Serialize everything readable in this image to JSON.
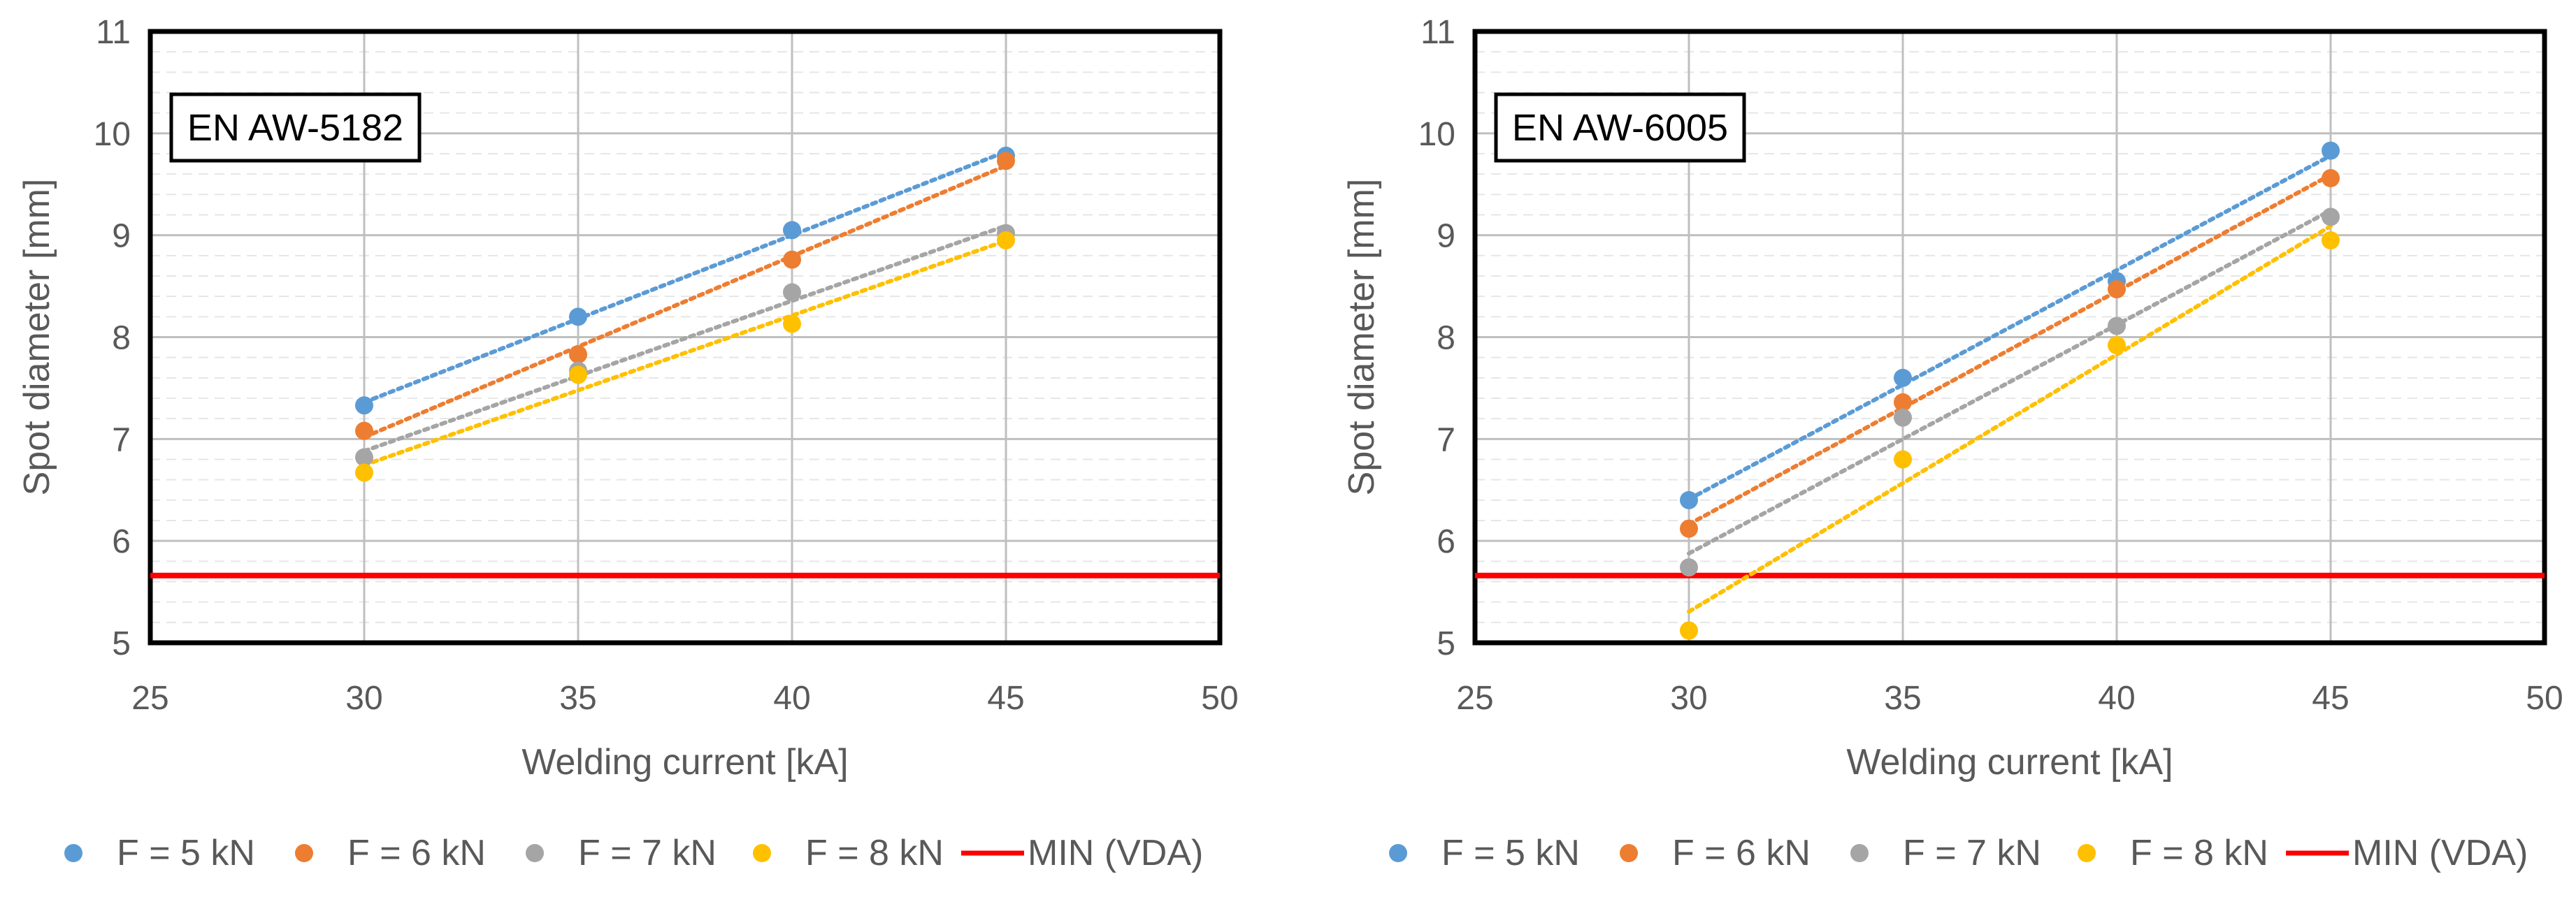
{
  "colors": {
    "f5": "#5B9BD5",
    "f6": "#ED7D31",
    "f7": "#A5A5A5",
    "f8": "#FFC000",
    "min": "#FF0000"
  },
  "chart_data": [
    {
      "type": "scatter",
      "label": "EN AW-5182",
      "xlabel": "Welding current [kA]",
      "ylabel": "Spot diameter [mm]",
      "xlim": [
        25,
        50
      ],
      "ylim": [
        5,
        11
      ],
      "xticks": [
        "25",
        "30",
        "35",
        "40",
        "45",
        "50"
      ],
      "yticks": [
        "5",
        "6",
        "7",
        "8",
        "9",
        "10",
        "11"
      ],
      "grid": true,
      "trendlines": "linear, dotted",
      "legend_position": "bottom",
      "series": [
        {
          "name": "F = 5 kN",
          "color_key": "f5",
          "x": [
            30,
            35,
            40,
            45
          ],
          "y": [
            7.33,
            8.2,
            9.05,
            9.78
          ]
        },
        {
          "name": "F = 6 kN",
          "color_key": "f6",
          "x": [
            30,
            35,
            40,
            45
          ],
          "y": [
            7.08,
            7.83,
            8.76,
            9.73
          ]
        },
        {
          "name": "F = 7 kN",
          "color_key": "f7",
          "x": [
            30,
            35,
            40,
            45
          ],
          "y": [
            6.82,
            7.67,
            8.44,
            9.02
          ]
        },
        {
          "name": "F = 8 kN",
          "color_key": "f8",
          "x": [
            30,
            35,
            40,
            45
          ],
          "y": [
            6.67,
            7.63,
            8.13,
            8.95
          ]
        }
      ],
      "reference_line": {
        "name": "MIN (VDA)",
        "color_key": "min",
        "y": 5.66
      }
    },
    {
      "type": "scatter",
      "label": "EN AW-6005",
      "xlabel": "Welding current [kA]",
      "ylabel": "Spot diameter [mm]",
      "xlim": [
        25,
        50
      ],
      "ylim": [
        5,
        11
      ],
      "xticks": [
        "25",
        "30",
        "35",
        "40",
        "45",
        "50"
      ],
      "yticks": [
        "5",
        "6",
        "7",
        "8",
        "9",
        "10",
        "11"
      ],
      "grid": true,
      "trendlines": "linear, dotted",
      "legend_position": "bottom",
      "series": [
        {
          "name": "F = 5 kN",
          "color_key": "f5",
          "x": [
            30,
            35,
            40,
            45
          ],
          "y": [
            6.4,
            7.6,
            8.55,
            9.83
          ]
        },
        {
          "name": "F = 6 kN",
          "color_key": "f6",
          "x": [
            30,
            35,
            40,
            45
          ],
          "y": [
            6.12,
            7.36,
            8.47,
            9.56
          ]
        },
        {
          "name": "F = 7 kN",
          "color_key": "f7",
          "x": [
            30,
            35,
            40,
            45
          ],
          "y": [
            5.74,
            7.21,
            8.11,
            9.18
          ]
        },
        {
          "name": "F = 8 kN",
          "color_key": "f8",
          "x": [
            30,
            35,
            40,
            45
          ],
          "y": [
            5.12,
            6.8,
            7.92,
            8.95
          ]
        }
      ],
      "reference_line": {
        "name": "MIN (VDA)",
        "color_key": "min",
        "y": 5.66
      }
    }
  ]
}
